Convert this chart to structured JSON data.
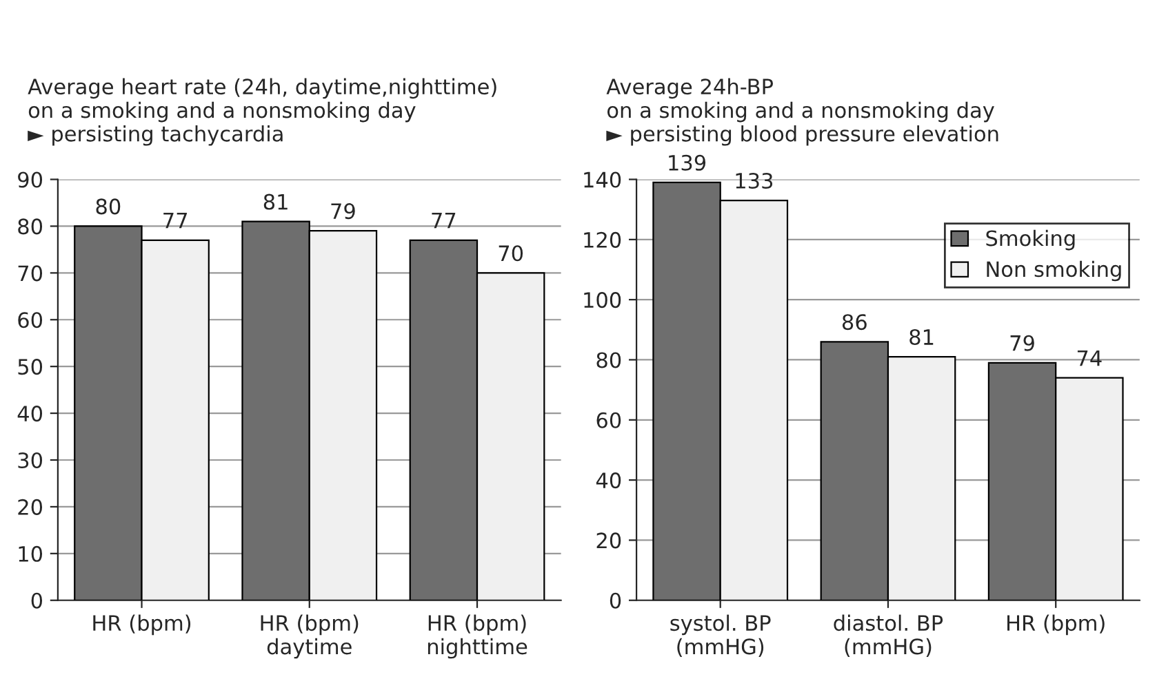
{
  "chart_data": [
    {
      "type": "bar",
      "title": "Average heart rate (24h, daytime,nighttime)\non a smoking and a nonsmoking day\n► persisting tachycardia",
      "categories": [
        "HR (bpm)",
        "HR (bpm)\ndaytime",
        "HR (bpm)\nnighttime"
      ],
      "series": [
        {
          "color": "#6e6e6e",
          "values": [
            80,
            81,
            77
          ]
        },
        {
          "color": "#f0f0f0",
          "values": [
            77,
            79,
            70
          ]
        }
      ],
      "ylim": [
        0,
        90
      ],
      "yticks": [
        0,
        10,
        20,
        30,
        40,
        50,
        60,
        70,
        80,
        90
      ],
      "grid": "y",
      "data_labels": true,
      "legend": false
    },
    {
      "type": "bar",
      "title": "Average 24h-BP\non a smoking and a nonsmoking day\n► persisting blood pressure elevation",
      "categories": [
        "systol. BP\n(mmHG)",
        "diastol. BP\n(mmHG)",
        "HR (bpm)"
      ],
      "series": [
        {
          "name": "Smoking",
          "color": "#6e6e6e",
          "values": [
            139,
            86,
            79
          ]
        },
        {
          "name": "Non smoking",
          "color": "#f0f0f0",
          "values": [
            133,
            81,
            74
          ]
        }
      ],
      "ylim": [
        0,
        140
      ],
      "yticks": [
        0,
        20,
        40,
        60,
        80,
        100,
        120,
        140
      ],
      "grid": "y",
      "data_labels": true,
      "legend": "top right"
    }
  ]
}
